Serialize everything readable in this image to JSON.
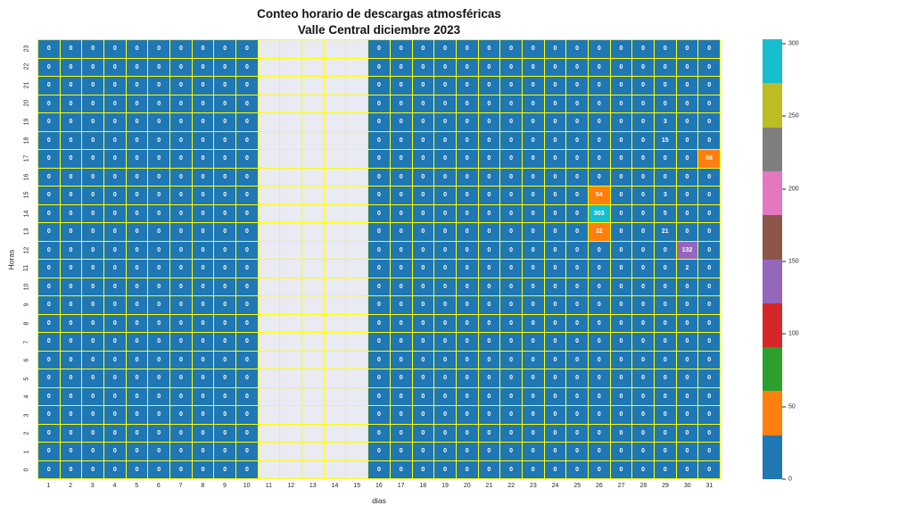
{
  "chart_data": {
    "type": "heatmap",
    "title_line1": "Conteo horario de descargas atmosféricas",
    "title_line2": "Valle Central diciembre 2023",
    "xlabel": "dias",
    "ylabel": "Horas",
    "days": [
      1,
      2,
      3,
      4,
      5,
      6,
      7,
      8,
      9,
      10,
      11,
      12,
      13,
      14,
      15,
      16,
      17,
      18,
      19,
      20,
      21,
      22,
      23,
      24,
      25,
      26,
      27,
      28,
      29,
      30,
      31
    ],
    "hours": [
      0,
      1,
      2,
      3,
      4,
      5,
      6,
      7,
      8,
      9,
      10,
      11,
      12,
      13,
      14,
      15,
      16,
      17,
      18,
      19,
      20,
      21,
      22,
      23
    ],
    "y_axis_order": "hour 0 at bottom, hour 23 at top",
    "missing_days": [
      11,
      12,
      13,
      14,
      15
    ],
    "default_value": 0,
    "nonzero_cells": [
      {
        "day": 26,
        "hour": 13,
        "value": 32
      },
      {
        "day": 26,
        "hour": 14,
        "value": 303
      },
      {
        "day": 26,
        "hour": 15,
        "value": 54
      },
      {
        "day": 29,
        "hour": 13,
        "value": 21
      },
      {
        "day": 29,
        "hour": 14,
        "value": 5
      },
      {
        "day": 29,
        "hour": 15,
        "value": 3
      },
      {
        "day": 29,
        "hour": 18,
        "value": 15
      },
      {
        "day": 29,
        "hour": 19,
        "value": 3
      },
      {
        "day": 30,
        "hour": 11,
        "value": 2
      },
      {
        "day": 30,
        "hour": 12,
        "value": 132
      },
      {
        "day": 31,
        "hour": 17,
        "value": 56
      }
    ],
    "colorbar": {
      "vmin": 0,
      "vmax": 303,
      "ticks": [
        0,
        50,
        100,
        150,
        200,
        250,
        300
      ],
      "palette": [
        "#1f77b4",
        "#ff7f0e",
        "#2ca02c",
        "#d62728",
        "#9467bd",
        "#8c564b",
        "#e377c2",
        "#7f7f7f",
        "#bcbd22",
        "#17becf"
      ],
      "position": "right"
    },
    "colors": {
      "zero_cell": "#1f77b4",
      "grid_line": "#ffff00",
      "missing_cell": "#eaeaf2",
      "cell_text": "#ffffff"
    },
    "grid": true,
    "legend": "colorbar right"
  }
}
